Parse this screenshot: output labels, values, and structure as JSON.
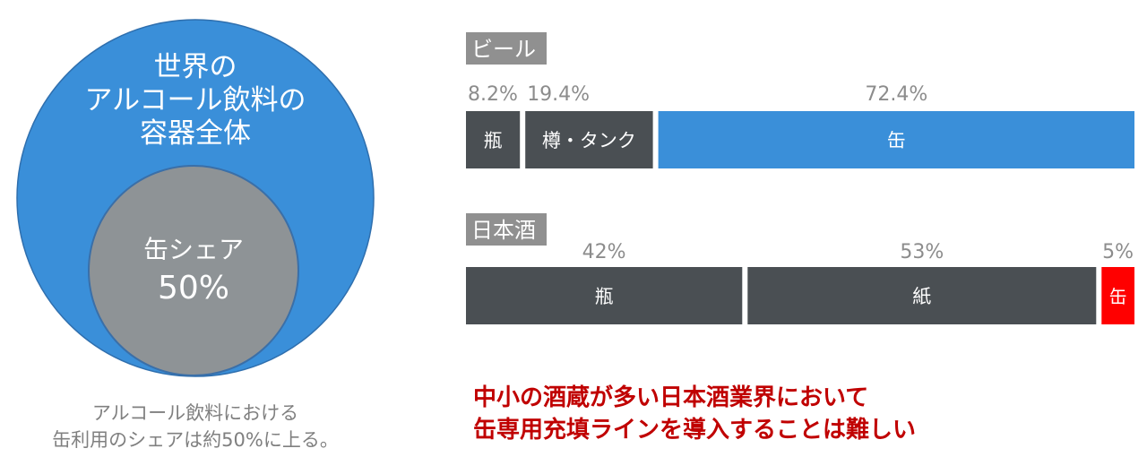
{
  "colors": {
    "blue": "#3a8fd9",
    "gray": "#8e9396",
    "dark": "#4a4f53",
    "red": "#ff0000",
    "tag_bg": "#909090",
    "pct_text": "#8c8c8c",
    "note": "#c00000"
  },
  "circle": {
    "outer_lines": [
      "世界の",
      "アルコール飲料の",
      "容器全体"
    ],
    "inner_label": "缶シェア",
    "inner_value": "50%"
  },
  "caption": [
    "アルコール飲料における",
    "缶利用のシェアは約50%に上る。"
  ],
  "note": [
    "中小の酒蔵が多い日本酒業界において",
    "缶専用充填ラインを導入することは難しい"
  ],
  "chart_data": [
    {
      "type": "bar",
      "stacked": true,
      "orientation": "horizontal",
      "title": "ビール",
      "unit": "%",
      "series": [
        {
          "name": "瓶",
          "value": 8.2,
          "color": "#4a4f53"
        },
        {
          "name": "樽・タンク",
          "value": 19.4,
          "color": "#4a4f53"
        },
        {
          "name": "缶",
          "value": 72.4,
          "color": "#3a8fd9"
        }
      ]
    },
    {
      "type": "bar",
      "stacked": true,
      "orientation": "horizontal",
      "title": "日本酒",
      "unit": "%",
      "series": [
        {
          "name": "瓶",
          "value": 42,
          "color": "#4a4f53"
        },
        {
          "name": "紙",
          "value": 53,
          "color": "#4a4f53"
        },
        {
          "name": "缶",
          "value": 5,
          "color": "#ff0000"
        }
      ]
    }
  ]
}
